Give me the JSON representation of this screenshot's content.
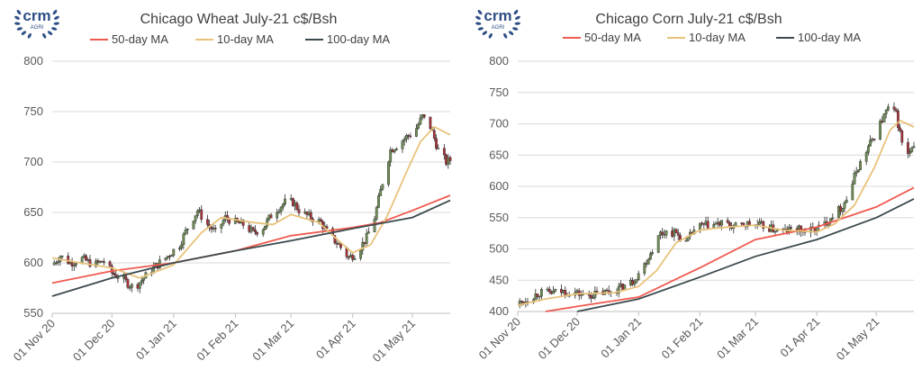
{
  "logo": {
    "brand": "crm",
    "sub": "AGRI"
  },
  "charts": [
    {
      "title": "Chicago Wheat July-21 c$/Bsh",
      "chart_data": {
        "type": "candlestick",
        "title": "Chicago Wheat July-21 c$/Bsh",
        "legend_position": "top",
        "x_range": [
          "2020-11-01",
          "2021-05-20"
        ],
        "ylim": [
          550,
          800
        ],
        "y_ticks": [
          550,
          600,
          650,
          700,
          750,
          800
        ],
        "x_ticks": [
          {
            "date": "2020-11-01",
            "label": "01 Nov 20"
          },
          {
            "date": "2020-12-01",
            "label": "01 Dec 20"
          },
          {
            "date": "2021-01-01",
            "label": "01 Jan 21"
          },
          {
            "date": "2021-02-01",
            "label": "01 Feb 21"
          },
          {
            "date": "2021-03-01",
            "label": "01 Mar 21"
          },
          {
            "date": "2021-04-01",
            "label": "01 Apr 21"
          },
          {
            "date": "2021-05-01",
            "label": "01 May 21"
          }
        ],
        "grid": true,
        "price_path": [
          [
            "2020-11-01",
            598
          ],
          [
            "2020-11-05",
            607
          ],
          [
            "2020-11-10",
            600
          ],
          [
            "2020-11-16",
            604
          ],
          [
            "2020-11-22",
            598
          ],
          [
            "2020-11-27",
            602
          ],
          [
            "2020-12-01",
            590
          ],
          [
            "2020-12-07",
            583
          ],
          [
            "2020-12-12",
            575
          ],
          [
            "2020-12-16",
            583
          ],
          [
            "2020-12-22",
            595
          ],
          [
            "2020-12-28",
            605
          ],
          [
            "2021-01-04",
            618
          ],
          [
            "2021-01-08",
            635
          ],
          [
            "2021-01-13",
            652
          ],
          [
            "2021-01-18",
            638
          ],
          [
            "2021-01-22",
            630
          ],
          [
            "2021-01-27",
            645
          ],
          [
            "2021-02-01",
            640
          ],
          [
            "2021-02-05",
            638
          ],
          [
            "2021-02-10",
            630
          ],
          [
            "2021-02-15",
            635
          ],
          [
            "2021-02-20",
            650
          ],
          [
            "2021-02-26",
            660
          ],
          [
            "2021-03-02",
            660
          ],
          [
            "2021-03-06",
            650
          ],
          [
            "2021-03-11",
            645
          ],
          [
            "2021-03-16",
            640
          ],
          [
            "2021-03-20",
            628
          ],
          [
            "2021-03-25",
            618
          ],
          [
            "2021-03-30",
            605
          ],
          [
            "2021-04-03",
            610
          ],
          [
            "2021-04-08",
            625
          ],
          [
            "2021-04-12",
            645
          ],
          [
            "2021-04-16",
            680
          ],
          [
            "2021-04-20",
            712
          ],
          [
            "2021-04-24",
            718
          ],
          [
            "2021-04-28",
            725
          ],
          [
            "2021-05-02",
            730
          ],
          [
            "2021-05-06",
            745
          ],
          [
            "2021-05-10",
            735
          ],
          [
            "2021-05-14",
            712
          ],
          [
            "2021-05-18",
            700
          ],
          [
            "2021-05-20",
            702
          ]
        ],
        "series": [
          {
            "name": "50-day MA",
            "color": "#f05a50",
            "points": [
              [
                "2020-11-01",
                580
              ],
              [
                "2020-12-01",
                592
              ],
              [
                "2021-01-01",
                600
              ],
              [
                "2021-02-01",
                612
              ],
              [
                "2021-03-01",
                627
              ],
              [
                "2021-04-01",
                635
              ],
              [
                "2021-04-15",
                640
              ],
              [
                "2021-05-01",
                652
              ],
              [
                "2021-05-20",
                667
              ]
            ]
          },
          {
            "name": "10-day MA",
            "color": "#e8c27a",
            "points": [
              [
                "2020-11-01",
                605
              ],
              [
                "2020-11-15",
                600
              ],
              [
                "2020-12-01",
                595
              ],
              [
                "2020-12-15",
                585
              ],
              [
                "2021-01-01",
                598
              ],
              [
                "2021-01-15",
                630
              ],
              [
                "2021-01-25",
                645
              ],
              [
                "2021-02-10",
                640
              ],
              [
                "2021-02-20",
                638
              ],
              [
                "2021-03-01",
                648
              ],
              [
                "2021-03-15",
                640
              ],
              [
                "2021-03-25",
                622
              ],
              [
                "2021-04-01",
                610
              ],
              [
                "2021-04-10",
                618
              ],
              [
                "2021-04-18",
                645
              ],
              [
                "2021-04-28",
                690
              ],
              [
                "2021-05-05",
                720
              ],
              [
                "2021-05-12",
                735
              ],
              [
                "2021-05-20",
                727
              ]
            ]
          },
          {
            "name": "100-day MA",
            "color": "#3b4a4d",
            "points": [
              [
                "2020-11-01",
                567
              ],
              [
                "2020-12-01",
                585
              ],
              [
                "2021-01-01",
                600
              ],
              [
                "2021-02-01",
                612
              ],
              [
                "2021-03-01",
                622
              ],
              [
                "2021-04-01",
                634
              ],
              [
                "2021-05-01",
                645
              ],
              [
                "2021-05-20",
                662
              ]
            ]
          }
        ]
      }
    },
    {
      "title": "Chicago Corn July-21 c$/Bsh",
      "chart_data": {
        "type": "candlestick",
        "title": "Chicago Corn July-21 c$/Bsh",
        "legend_position": "top",
        "x_range": [
          "2020-11-01",
          "2021-05-20"
        ],
        "ylim": [
          400,
          800
        ],
        "y_ticks": [
          400,
          450,
          500,
          550,
          600,
          650,
          700,
          750,
          800
        ],
        "x_ticks": [
          {
            "date": "2020-11-01",
            "label": "01 Nov 20"
          },
          {
            "date": "2020-12-01",
            "label": "01 Dec 20"
          },
          {
            "date": "2021-01-01",
            "label": "01 Jan 21"
          },
          {
            "date": "2021-02-01",
            "label": "01 Feb 21"
          },
          {
            "date": "2021-03-01",
            "label": "01 Mar 21"
          },
          {
            "date": "2021-04-01",
            "label": "01 Apr 21"
          },
          {
            "date": "2021-05-01",
            "label": "01 May 21"
          }
        ],
        "grid": true,
        "price_path": [
          [
            "2020-11-01",
            412
          ],
          [
            "2020-11-06",
            420
          ],
          [
            "2020-11-12",
            430
          ],
          [
            "2020-11-18",
            430
          ],
          [
            "2020-11-24",
            432
          ],
          [
            "2020-11-30",
            430
          ],
          [
            "2020-12-05",
            425
          ],
          [
            "2020-12-11",
            428
          ],
          [
            "2020-12-17",
            432
          ],
          [
            "2020-12-23",
            438
          ],
          [
            "2020-12-29",
            448
          ],
          [
            "2021-01-04",
            475
          ],
          [
            "2021-01-08",
            500
          ],
          [
            "2021-01-12",
            525
          ],
          [
            "2021-01-16",
            528
          ],
          [
            "2021-01-20",
            525
          ],
          [
            "2021-01-25",
            510
          ],
          [
            "2021-01-30",
            535
          ],
          [
            "2021-02-05",
            538
          ],
          [
            "2021-02-12",
            540
          ],
          [
            "2021-02-19",
            535
          ],
          [
            "2021-02-25",
            540
          ],
          [
            "2021-03-03",
            538
          ],
          [
            "2021-03-09",
            532
          ],
          [
            "2021-03-15",
            528
          ],
          [
            "2021-03-21",
            532
          ],
          [
            "2021-03-27",
            528
          ],
          [
            "2021-04-01",
            532
          ],
          [
            "2021-04-05",
            540
          ],
          [
            "2021-04-09",
            555
          ],
          [
            "2021-04-13",
            565
          ],
          [
            "2021-04-17",
            585
          ],
          [
            "2021-04-21",
            625
          ],
          [
            "2021-04-25",
            650
          ],
          [
            "2021-04-29",
            675
          ],
          [
            "2021-05-03",
            700
          ],
          [
            "2021-05-07",
            725
          ],
          [
            "2021-05-11",
            715
          ],
          [
            "2021-05-14",
            670
          ],
          [
            "2021-05-17",
            650
          ],
          [
            "2021-05-20",
            660
          ]
        ],
        "series": [
          {
            "name": "50-day MA",
            "color": "#f05a50",
            "points": [
              [
                "2020-11-15",
                400
              ],
              [
                "2020-12-01",
                408
              ],
              [
                "2021-01-01",
                423
              ],
              [
                "2021-02-01",
                470
              ],
              [
                "2021-03-01",
                515
              ],
              [
                "2021-04-01",
                535
              ],
              [
                "2021-05-01",
                567
              ],
              [
                "2021-05-20",
                598
              ]
            ]
          },
          {
            "name": "10-day MA",
            "color": "#e8c27a",
            "points": [
              [
                "2020-11-01",
                410
              ],
              [
                "2020-11-15",
                420
              ],
              [
                "2020-12-01",
                428
              ],
              [
                "2020-12-20",
                430
              ],
              [
                "2021-01-01",
                440
              ],
              [
                "2021-01-10",
                465
              ],
              [
                "2021-01-20",
                510
              ],
              [
                "2021-02-01",
                530
              ],
              [
                "2021-02-15",
                535
              ],
              [
                "2021-03-01",
                538
              ],
              [
                "2021-03-15",
                530
              ],
              [
                "2021-04-01",
                527
              ],
              [
                "2021-04-10",
                540
              ],
              [
                "2021-04-20",
                570
              ],
              [
                "2021-04-30",
                630
              ],
              [
                "2021-05-08",
                690
              ],
              [
                "2021-05-13",
                705
              ],
              [
                "2021-05-20",
                695
              ]
            ]
          },
          {
            "name": "100-day MA",
            "color": "#3b4a4d",
            "points": [
              [
                "2020-12-01",
                400
              ],
              [
                "2021-01-01",
                420
              ],
              [
                "2021-02-01",
                455
              ],
              [
                "2021-03-01",
                488
              ],
              [
                "2021-04-01",
                515
              ],
              [
                "2021-05-01",
                550
              ],
              [
                "2021-05-20",
                580
              ]
            ]
          }
        ]
      }
    }
  ]
}
